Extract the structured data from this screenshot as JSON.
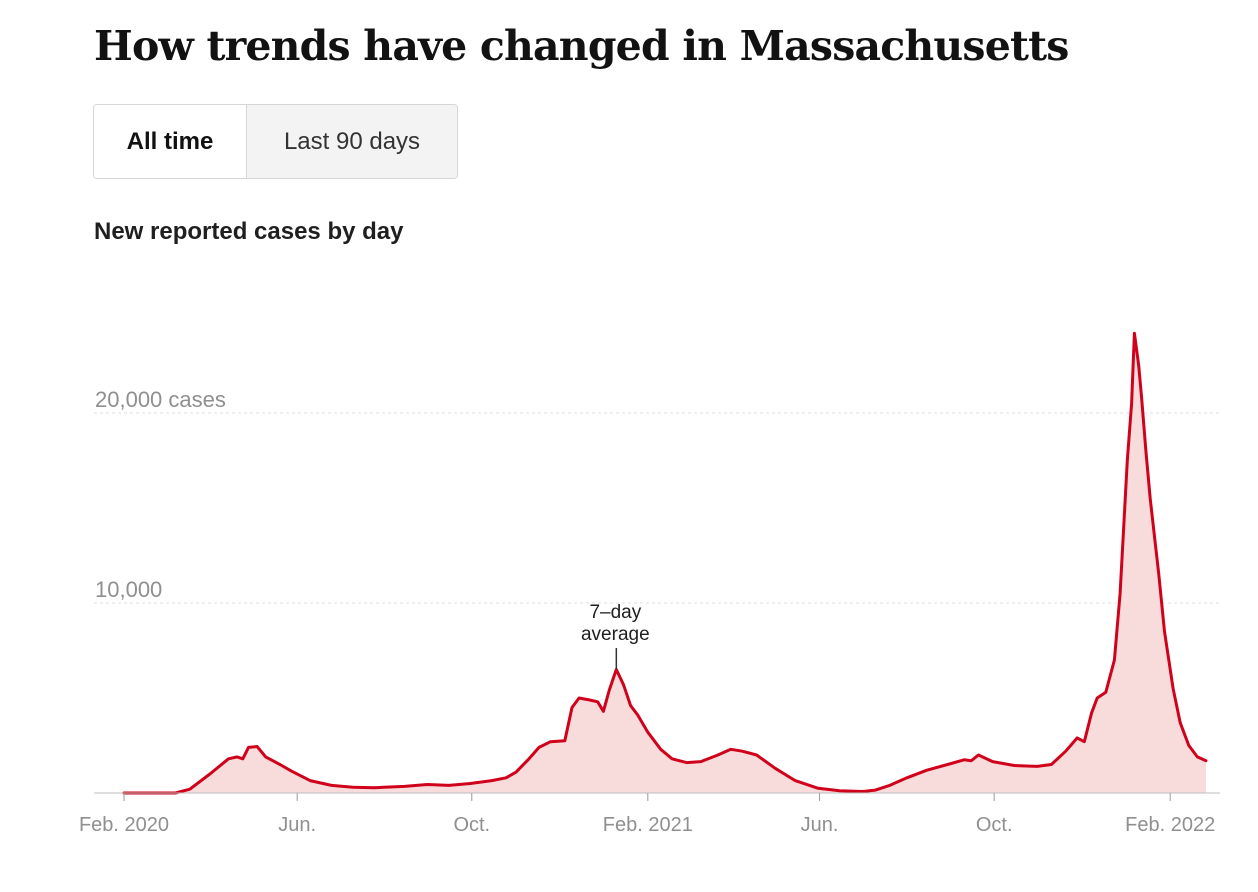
{
  "header": {
    "title": "How trends have changed in Massachusetts"
  },
  "toggle": {
    "all_time": "All time",
    "last_90_days": "Last 90 days",
    "selected": "All time"
  },
  "chart_data": {
    "type": "area",
    "title": "New reported cases by day",
    "xlabel": "",
    "ylabel": "",
    "ylim": [
      0,
      25000
    ],
    "xlim": [
      "2020-02-01",
      "2022-03-05"
    ],
    "grid": true,
    "y_ticks": [
      {
        "value": 10000,
        "label": "10,000"
      },
      {
        "value": 20000,
        "label": "20,000 cases"
      }
    ],
    "x_ticks": [
      {
        "date": "2020-02-01",
        "label": "Feb. 2020"
      },
      {
        "date": "2020-06-01",
        "label": "Jun."
      },
      {
        "date": "2020-10-01",
        "label": "Oct."
      },
      {
        "date": "2021-02-01",
        "label": "Feb. 2021"
      },
      {
        "date": "2021-06-01",
        "label": "Jun."
      },
      {
        "date": "2021-10-01",
        "label": "Oct."
      },
      {
        "date": "2022-02-01",
        "label": "Feb. 2022"
      }
    ],
    "annotation": {
      "line1": "7–day",
      "line2": "average",
      "date": "2021-01-10",
      "value": 6400
    },
    "series": [
      {
        "color": "#d0021b",
        "fill": "#f8dcdc",
        "points": [
          [
            "2020-02-01",
            0
          ],
          [
            "2020-03-08",
            0
          ],
          [
            "2020-03-18",
            200
          ],
          [
            "2020-04-01",
            1000
          ],
          [
            "2020-04-14",
            1800
          ],
          [
            "2020-04-20",
            1900
          ],
          [
            "2020-04-24",
            1800
          ],
          [
            "2020-04-28",
            2400
          ],
          [
            "2020-05-04",
            2450
          ],
          [
            "2020-05-10",
            1900
          ],
          [
            "2020-05-20",
            1500
          ],
          [
            "2020-05-28",
            1150
          ],
          [
            "2020-06-10",
            650
          ],
          [
            "2020-06-25",
            400
          ],
          [
            "2020-07-10",
            300
          ],
          [
            "2020-07-25",
            280
          ],
          [
            "2020-08-15",
            350
          ],
          [
            "2020-08-31",
            450
          ],
          [
            "2020-09-15",
            400
          ],
          [
            "2020-09-30",
            500
          ],
          [
            "2020-10-15",
            650
          ],
          [
            "2020-10-25",
            800
          ],
          [
            "2020-11-01",
            1100
          ],
          [
            "2020-11-10",
            1800
          ],
          [
            "2020-11-17",
            2400
          ],
          [
            "2020-11-25",
            2700
          ],
          [
            "2020-12-05",
            2750
          ],
          [
            "2020-12-10",
            4500
          ],
          [
            "2020-12-15",
            5000
          ],
          [
            "2020-12-22",
            4900
          ],
          [
            "2020-12-28",
            4800
          ],
          [
            "2021-01-01",
            4300
          ],
          [
            "2021-01-05",
            5400
          ],
          [
            "2021-01-10",
            6500
          ],
          [
            "2021-01-15",
            5700
          ],
          [
            "2021-01-20",
            4600
          ],
          [
            "2021-01-25",
            4100
          ],
          [
            "2021-02-01",
            3200
          ],
          [
            "2021-02-10",
            2300
          ],
          [
            "2021-02-18",
            1800
          ],
          [
            "2021-02-28",
            1600
          ],
          [
            "2021-03-10",
            1650
          ],
          [
            "2021-03-22",
            2000
          ],
          [
            "2021-03-31",
            2300
          ],
          [
            "2021-04-08",
            2200
          ],
          [
            "2021-04-18",
            2000
          ],
          [
            "2021-05-01",
            1300
          ],
          [
            "2021-05-15",
            650
          ],
          [
            "2021-05-31",
            250
          ],
          [
            "2021-06-15",
            120
          ],
          [
            "2021-07-01",
            80
          ],
          [
            "2021-07-10",
            150
          ],
          [
            "2021-07-20",
            400
          ],
          [
            "2021-08-01",
            800
          ],
          [
            "2021-08-15",
            1200
          ],
          [
            "2021-09-01",
            1550
          ],
          [
            "2021-09-10",
            1750
          ],
          [
            "2021-09-15",
            1700
          ],
          [
            "2021-09-20",
            2000
          ],
          [
            "2021-09-30",
            1650
          ],
          [
            "2021-10-15",
            1450
          ],
          [
            "2021-10-31",
            1400
          ],
          [
            "2021-11-10",
            1500
          ],
          [
            "2021-11-20",
            2200
          ],
          [
            "2021-11-28",
            2900
          ],
          [
            "2021-12-03",
            2700
          ],
          [
            "2021-12-08",
            4200
          ],
          [
            "2021-12-12",
            5000
          ],
          [
            "2021-12-18",
            5300
          ],
          [
            "2021-12-24",
            7000
          ],
          [
            "2021-12-28",
            10500
          ],
          [
            "2022-01-02",
            17500
          ],
          [
            "2022-01-05",
            20500
          ],
          [
            "2022-01-07",
            24200
          ],
          [
            "2022-01-10",
            22500
          ],
          [
            "2022-01-12",
            20800
          ],
          [
            "2022-01-15",
            18000
          ],
          [
            "2022-01-18",
            15500
          ],
          [
            "2022-01-24",
            11500
          ],
          [
            "2022-01-28",
            8500
          ],
          [
            "2022-02-03",
            5500
          ],
          [
            "2022-02-08",
            3700
          ],
          [
            "2022-02-14",
            2500
          ],
          [
            "2022-02-20",
            1900
          ],
          [
            "2022-02-26",
            1700
          ]
        ]
      }
    ]
  }
}
